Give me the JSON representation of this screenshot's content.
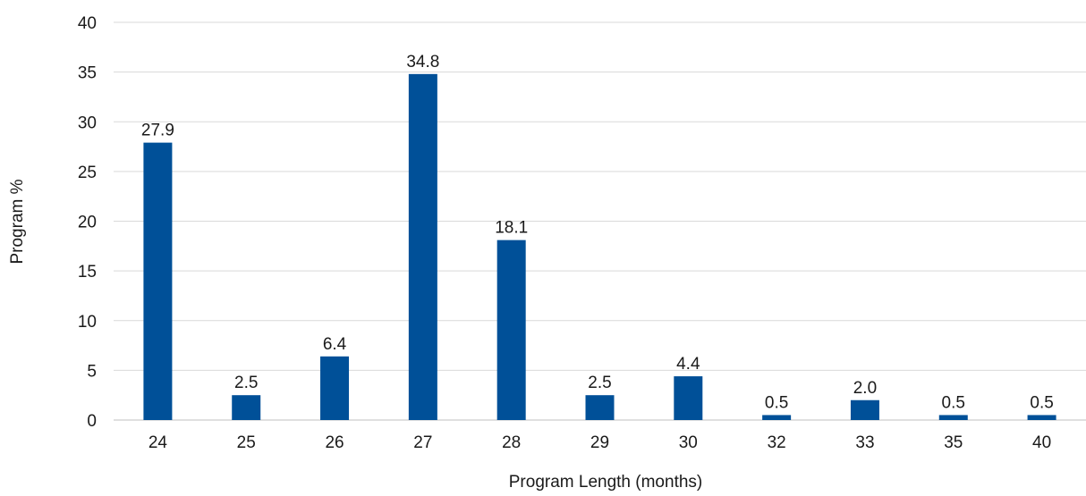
{
  "chart_data": {
    "type": "bar",
    "title": "",
    "xlabel": "Program Length (months)",
    "ylabel": "Program %",
    "categories": [
      "24",
      "25",
      "26",
      "27",
      "28",
      "29",
      "30",
      "32",
      "33",
      "35",
      "40"
    ],
    "values": [
      27.9,
      2.5,
      6.4,
      34.8,
      18.1,
      2.5,
      4.4,
      0.5,
      2.0,
      0.5,
      0.5
    ],
    "data_labels": [
      "27.9",
      "2.5",
      "6.4",
      "34.8",
      "18.1",
      "2.5",
      "4.4",
      "0.5",
      "2.0",
      "0.5",
      "0.5"
    ],
    "ylim": [
      0,
      40
    ],
    "yticks": [
      "0",
      "5",
      "10",
      "15",
      "20",
      "25",
      "30",
      "35",
      "40"
    ],
    "grid": true,
    "legend": "none",
    "colors": {
      "bar": "#005098",
      "grid": "#d9d9d9",
      "axis": "#bfbfbf",
      "text": "#1a1a1a"
    }
  }
}
